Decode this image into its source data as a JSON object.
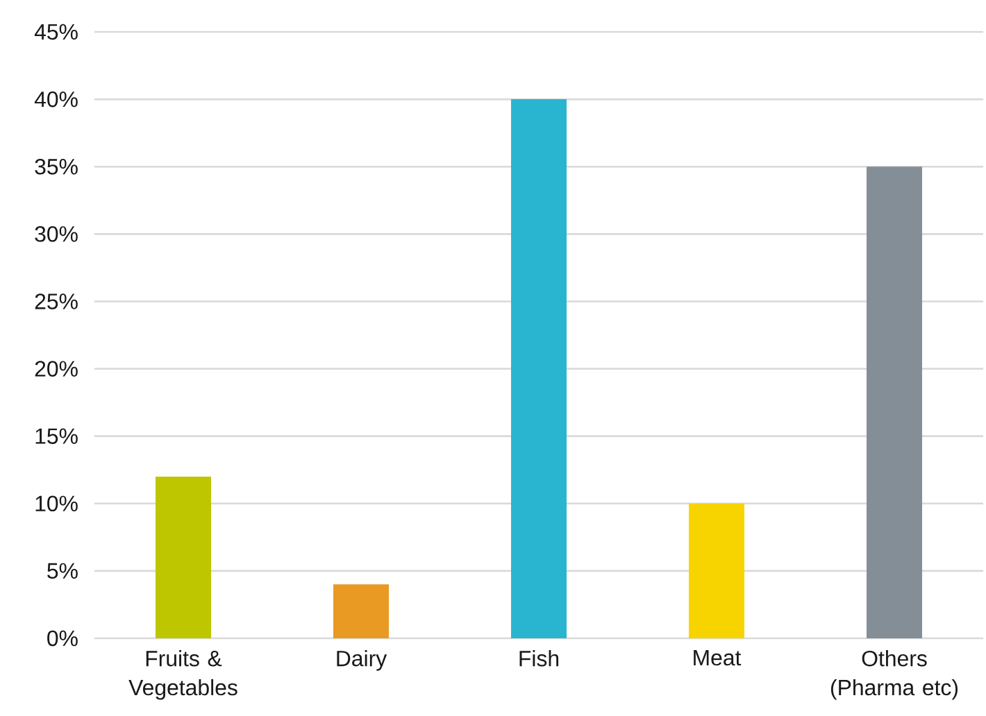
{
  "chart_data": {
    "type": "bar",
    "categories": [
      "Fruits & Vegetables",
      "Dairy",
      "Fish",
      "Meat",
      "Others (Pharma etc)"
    ],
    "values": [
      12,
      4,
      40,
      10,
      35
    ],
    "colors": [
      "#bec600",
      "#e99a22",
      "#29b5d0",
      "#f7d400",
      "#848e96"
    ],
    "ylim": [
      0,
      45
    ],
    "yticks": [
      {
        "value": 0,
        "label": "0%"
      },
      {
        "value": 5,
        "label": "5%"
      },
      {
        "value": 10,
        "label": "10%"
      },
      {
        "value": 15,
        "label": "15%"
      },
      {
        "value": 20,
        "label": "20%"
      },
      {
        "value": 25,
        "label": "25%"
      },
      {
        "value": 30,
        "label": "30%"
      },
      {
        "value": 35,
        "label": "35%"
      },
      {
        "value": 40,
        "label": "40%"
      },
      {
        "value": 45,
        "label": "45%"
      }
    ],
    "grid": "y"
  }
}
